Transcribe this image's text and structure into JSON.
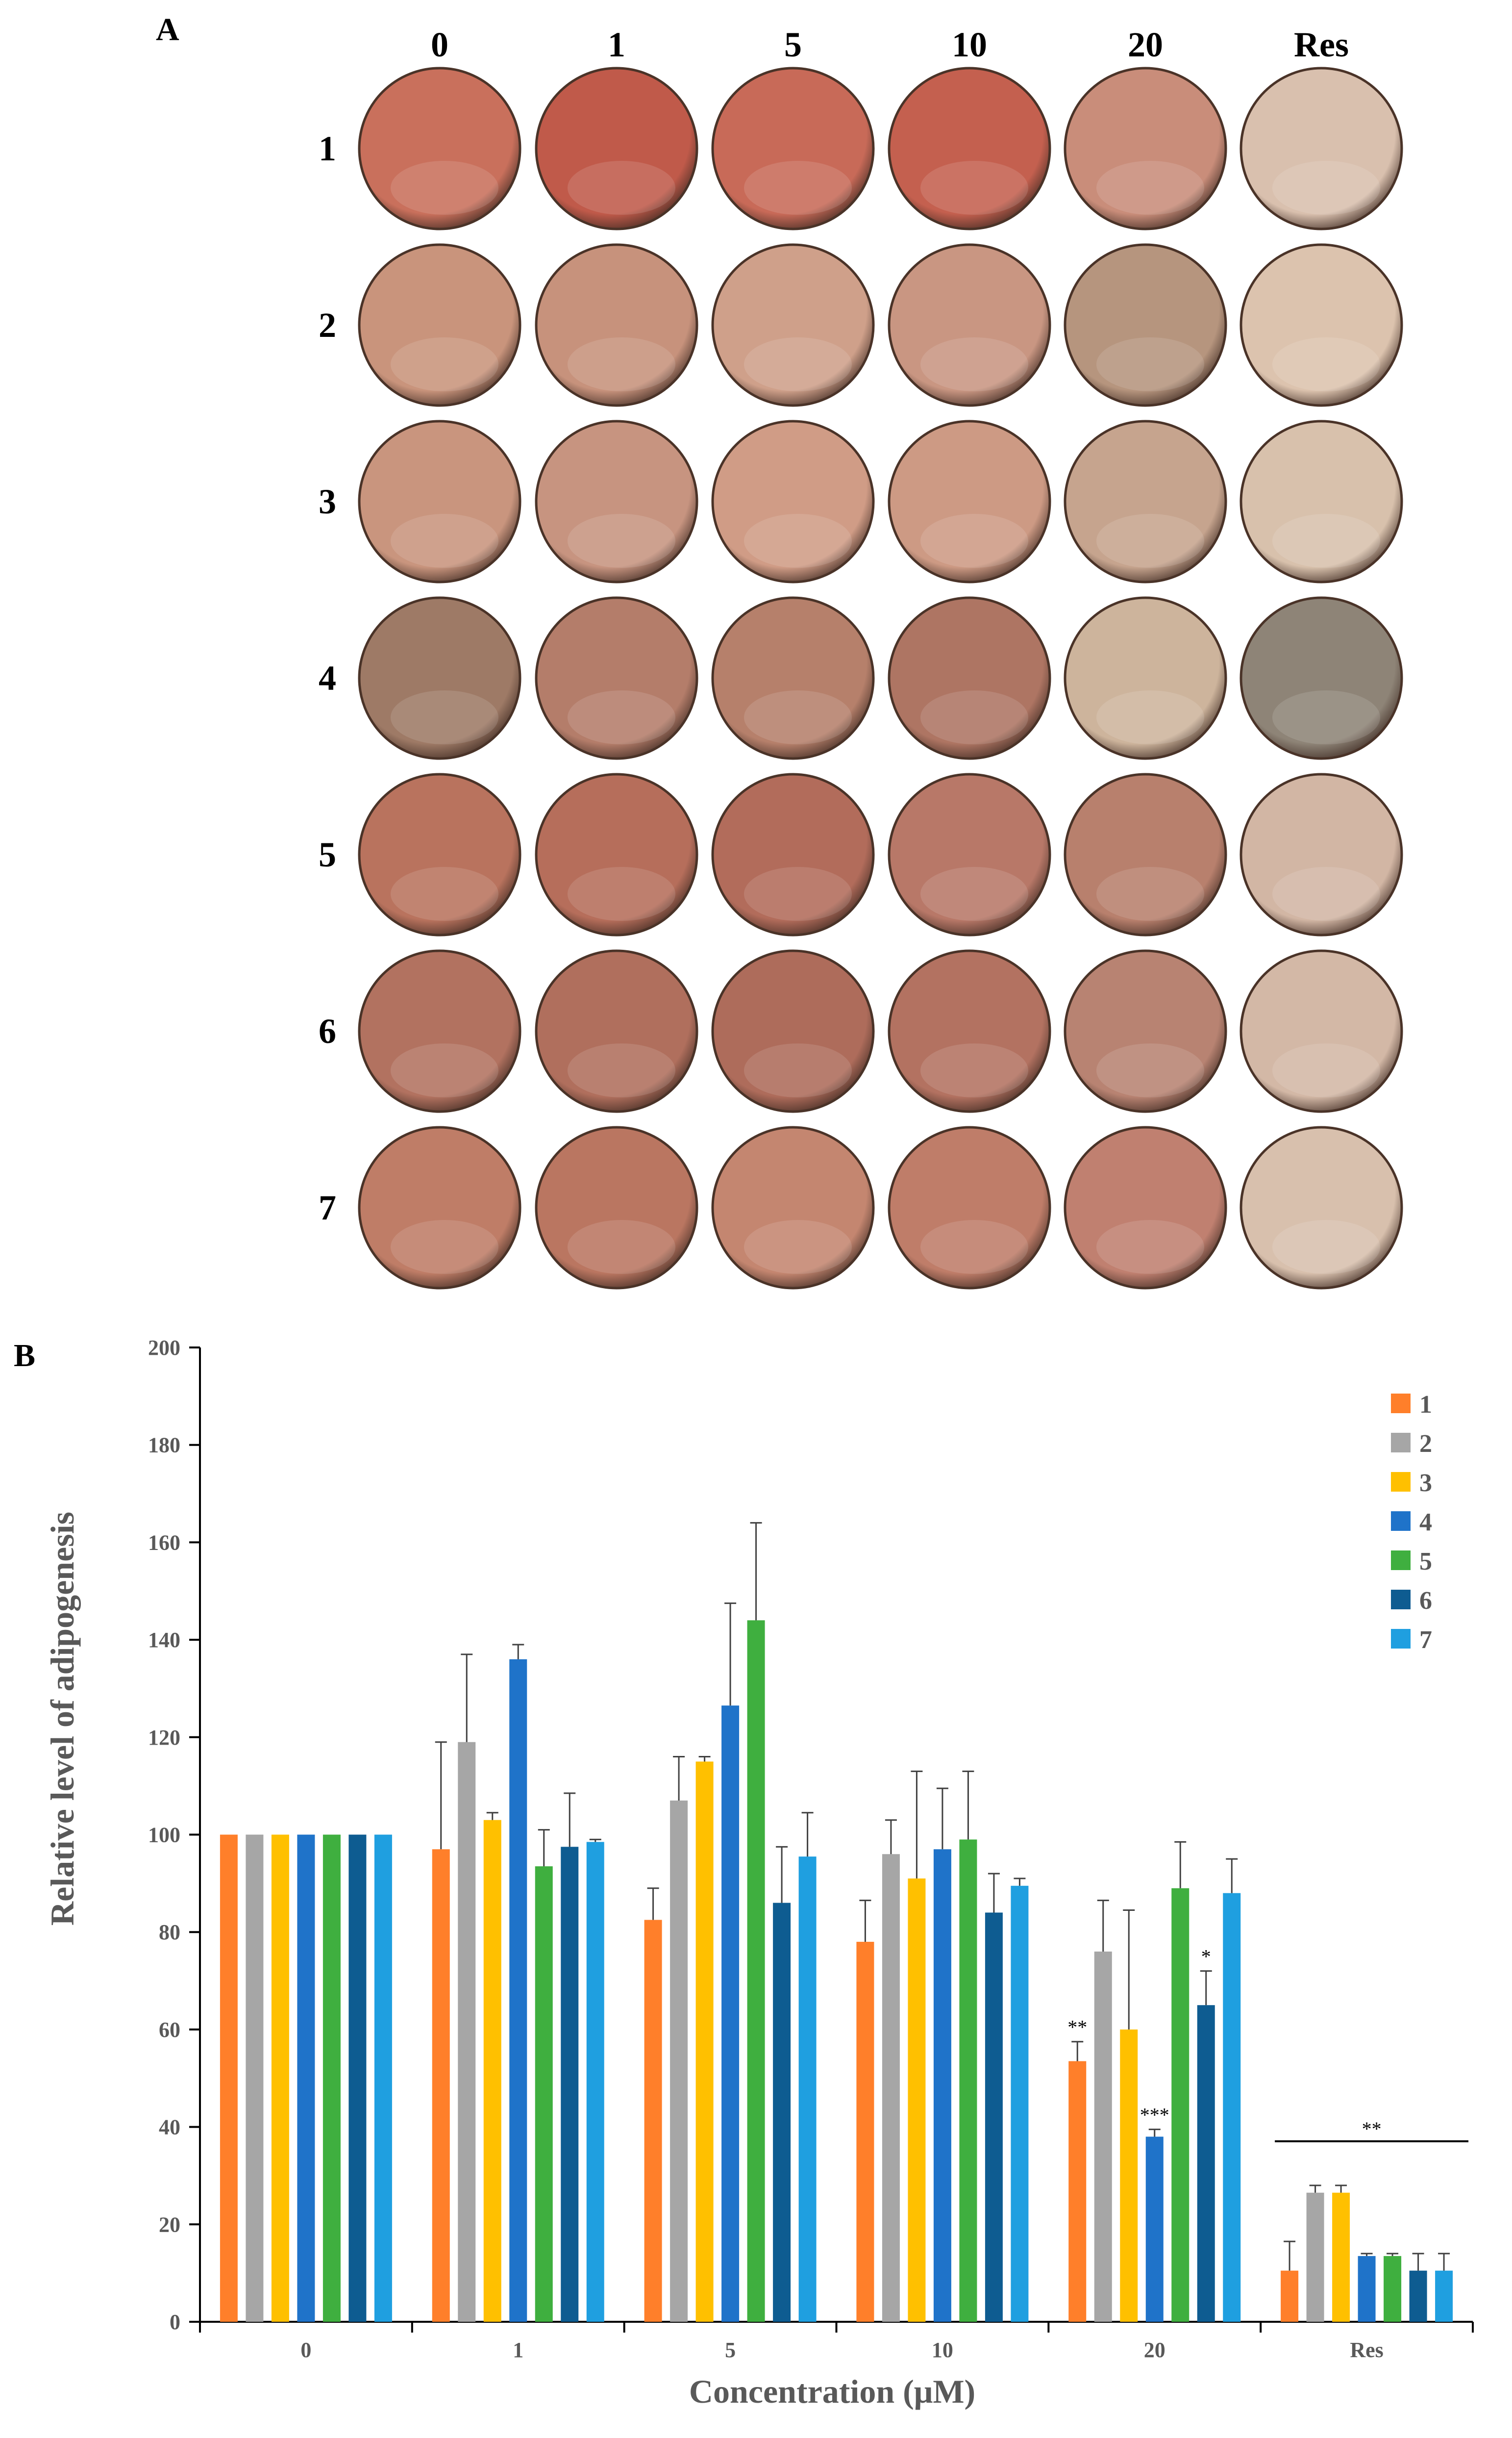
{
  "panel_a": {
    "label": "A",
    "columns": [
      "0",
      "1",
      "5",
      "10",
      "20",
      "Res"
    ],
    "rows": [
      "1",
      "2",
      "3",
      "4",
      "5",
      "6",
      "7"
    ],
    "well_colors": [
      [
        "#c9705c",
        "#c05a4a",
        "#c86a58",
        "#c4604f",
        "#c98d7a",
        "#d9c0ae"
      ],
      [
        "#c9947c",
        "#c7927c",
        "#cfa08a",
        "#c99682",
        "#b6957e",
        "#dcc3ae"
      ],
      [
        "#c9957e",
        "#c79480",
        "#d09c86",
        "#cd9a84",
        "#c6a48e",
        "#d8c1ac"
      ],
      [
        "#9e7a66",
        "#b47d6a",
        "#b6806b",
        "#ae7563",
        "#cdb49c",
        "#8e8477"
      ],
      [
        "#b9735e",
        "#b66e5b",
        "#b26c5b",
        "#b87868",
        "#b8806d",
        "#d2b6a4"
      ],
      [
        "#b27260",
        "#b06f5d",
        "#ae6c5b",
        "#b37261",
        "#b88372",
        "#d3b8a6"
      ],
      [
        "#bf7d67",
        "#ba7661",
        "#c48670",
        "#bf7d69",
        "#c08070",
        "#d8c0ad"
      ]
    ]
  },
  "chart_data": {
    "type": "bar",
    "panel_label": "B",
    "title": "",
    "xlabel": "Concentration (μM)",
    "ylabel": "Relative level of adipogenesis",
    "ylim": [
      0,
      200
    ],
    "yticks": [
      "0",
      "20",
      "40",
      "60",
      "80",
      "100",
      "120",
      "140",
      "160",
      "180",
      "200"
    ],
    "categories": [
      "0",
      "1",
      "5",
      "10",
      "20",
      "Res"
    ],
    "legend_position": "top-right",
    "series": [
      {
        "name": "1",
        "color": "#ff7f2a",
        "values": [
          100,
          97,
          82.5,
          78,
          53.5,
          10.5
        ],
        "errors": [
          0,
          22,
          6.5,
          8.5,
          4,
          6
        ]
      },
      {
        "name": "2",
        "color": "#a6a6a6",
        "values": [
          100,
          119,
          107,
          96,
          76,
          26.5
        ],
        "errors": [
          0,
          18,
          9,
          7,
          10.5,
          1.5
        ]
      },
      {
        "name": "3",
        "color": "#ffc000",
        "values": [
          100,
          103,
          115,
          91,
          60,
          26.5
        ],
        "errors": [
          0,
          1.5,
          1,
          22,
          24.5,
          1.5
        ]
      },
      {
        "name": "4",
        "color": "#1f73c9",
        "values": [
          100,
          136,
          126.5,
          97,
          38,
          13.5
        ],
        "errors": [
          0,
          3,
          21,
          12.5,
          1.5,
          0.5
        ]
      },
      {
        "name": "5",
        "color": "#3faf3f",
        "values": [
          100,
          93.5,
          144,
          99,
          89,
          13.5
        ],
        "errors": [
          0,
          7.5,
          20,
          14,
          9.5,
          0.5
        ]
      },
      {
        "name": "6",
        "color": "#0e5c91",
        "values": [
          100,
          97.5,
          86,
          84,
          65,
          10.5
        ],
        "errors": [
          0,
          11,
          11.5,
          8,
          7,
          3.5
        ]
      },
      {
        "name": "7",
        "color": "#1f9fe0",
        "values": [
          100,
          98.5,
          95.5,
          89.5,
          88,
          10.5
        ],
        "errors": [
          0,
          0.5,
          9,
          1.5,
          7,
          3.5
        ]
      }
    ],
    "annotations": [
      {
        "category": "20",
        "series": "1",
        "text": "**"
      },
      {
        "category": "20",
        "series": "4",
        "text": "***"
      },
      {
        "category": "20",
        "series": "6",
        "text": "*"
      },
      {
        "category": "Res",
        "series": "all",
        "text": "**",
        "bracket": true
      }
    ]
  }
}
